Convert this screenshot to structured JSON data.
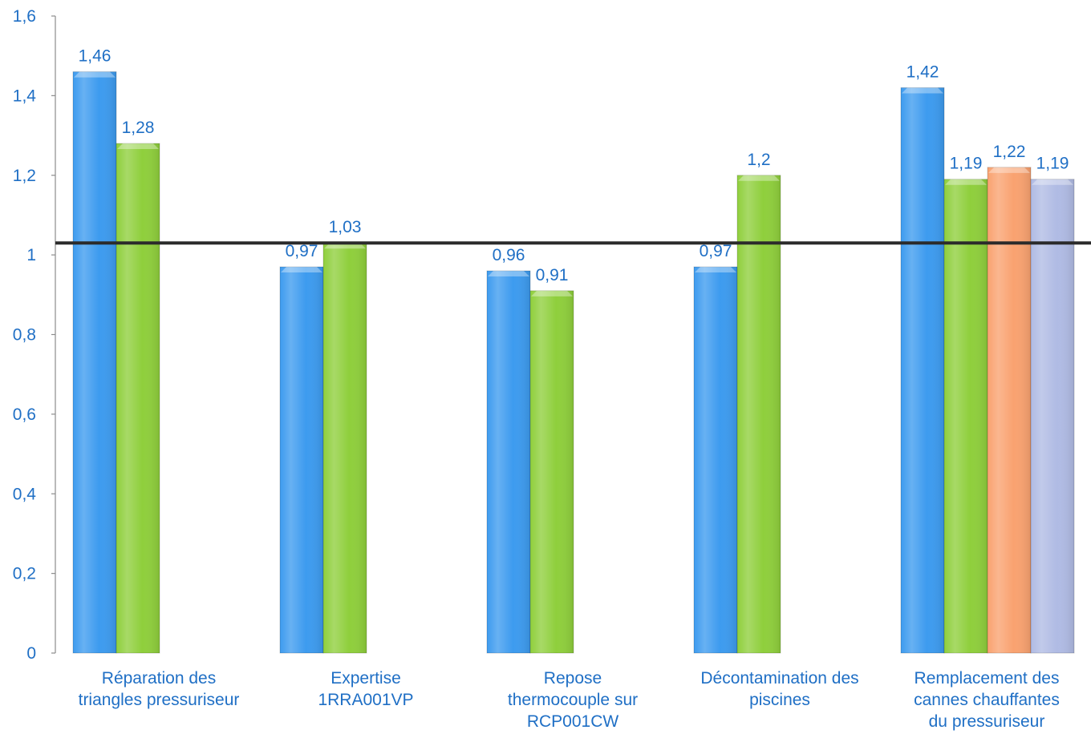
{
  "chart_data": {
    "type": "bar",
    "title": "",
    "xlabel": "",
    "ylabel": "",
    "ylim": [
      0,
      1.6
    ],
    "yticks": [
      0,
      0.2,
      0.4,
      0.6,
      0.8,
      1,
      1.2,
      1.4,
      1.6
    ],
    "ytick_labels": [
      "0",
      "0,2",
      "0,4",
      "0,6",
      "0,8",
      "1",
      "1,2",
      "1,4",
      "1,6"
    ],
    "grid": false,
    "legend": "none",
    "reference_line": 1.03,
    "colors": [
      "#3d9bef",
      "#8fcf3c",
      "#f9a270",
      "#b0bbe4"
    ],
    "categories": [
      {
        "label_lines": [
          "Réparation des",
          "triangles pressuriseur"
        ],
        "values": [
          1.46,
          1.28
        ],
        "labels": [
          "1,46",
          "1,28"
        ]
      },
      {
        "label_lines": [
          "Expertise",
          "1RRA001VP"
        ],
        "values": [
          0.97,
          1.03
        ],
        "labels": [
          "0,97",
          "1,03"
        ]
      },
      {
        "label_lines": [
          "Repose",
          "thermocouple sur",
          "RCP001CW"
        ],
        "values": [
          0.96,
          0.91
        ],
        "labels": [
          "0,96",
          "0,91"
        ]
      },
      {
        "label_lines": [
          "Décontamination des",
          "piscines"
        ],
        "values": [
          0.97,
          1.2
        ],
        "labels": [
          "0,97",
          "1,2"
        ]
      },
      {
        "label_lines": [
          "Remplacement des",
          "cannes chauffantes",
          "du pressuriseur"
        ],
        "values": [
          1.42,
          1.19,
          1.22,
          1.19
        ],
        "labels": [
          "1,42",
          "1,19",
          "1,22",
          "1,19"
        ]
      }
    ]
  }
}
